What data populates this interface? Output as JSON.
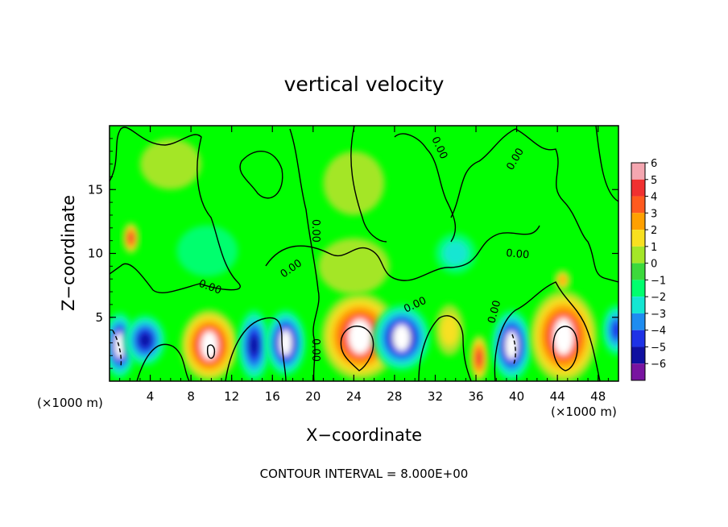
{
  "chart_data": {
    "type": "heatmap",
    "title": "vertical velocity",
    "xlabel": "X−coordinate",
    "ylabel": "Z−coordinate",
    "x_unit_label": "(×1000 m)",
    "z_unit_label": "(×1000 m)",
    "xlim": [
      0,
      50
    ],
    "ylim": [
      0,
      20
    ],
    "x_ticks": [
      {
        "v": 4,
        "label": "4"
      },
      {
        "v": 8,
        "label": "8"
      },
      {
        "v": 12,
        "label": "12"
      },
      {
        "v": 16,
        "label": "16"
      },
      {
        "v": 20,
        "label": "20"
      },
      {
        "v": 24,
        "label": "24"
      },
      {
        "v": 28,
        "label": "28"
      },
      {
        "v": 32,
        "label": "32"
      },
      {
        "v": 36,
        "label": "36"
      },
      {
        "v": 40,
        "label": "40"
      },
      {
        "v": 44,
        "label": "44"
      },
      {
        "v": 48,
        "label": "48"
      }
    ],
    "y_ticks": [
      {
        "v": 5,
        "label": "5"
      },
      {
        "v": 10,
        "label": "10"
      },
      {
        "v": 15,
        "label": "15"
      }
    ],
    "contour_interval_text": "CONTOUR INTERVAL = 8.000E+00",
    "contour_label": "0.00",
    "colorbar": {
      "levels": [
        {
          "label": "6",
          "color": "#f4a6b0"
        },
        {
          "label": "5",
          "color": "#f03030"
        },
        {
          "label": "4",
          "color": "#ff5a1e"
        },
        {
          "label": "3",
          "color": "#ffa000"
        },
        {
          "label": "2",
          "color": "#f8e020"
        },
        {
          "label": "1",
          "color": "#a4e628"
        },
        {
          "label": "0",
          "color": "#3cd93c"
        },
        {
          "label": "−1",
          "color": "#00ff6e"
        },
        {
          "label": "−2",
          "color": "#14e6d2"
        },
        {
          "label": "−3",
          "color": "#1e8cf0"
        },
        {
          "label": "−4",
          "color": "#1e32e6"
        },
        {
          "label": "−5",
          "color": "#1010a0"
        },
        {
          "label": "−6",
          "color": "#7814a0"
        }
      ]
    },
    "background_value": 0,
    "background_color": "#00ff00",
    "cells": [
      {
        "x": 1.0,
        "z": 2.8,
        "rx": 1.6,
        "rz": 2.6,
        "w": -5.5
      },
      {
        "x": 3.5,
        "z": 3.2,
        "rx": 2.0,
        "rz": 2.0,
        "w": -4.5
      },
      {
        "x": 9.8,
        "z": 2.8,
        "rx": 2.8,
        "rz": 2.8,
        "w": 5.6
      },
      {
        "x": 14.2,
        "z": 2.8,
        "rx": 1.6,
        "rz": 2.8,
        "w": -5.2
      },
      {
        "x": 17.3,
        "z": 3.0,
        "rx": 2.0,
        "rz": 2.6,
        "w": -5.6
      },
      {
        "x": 24.6,
        "z": 3.5,
        "rx": 3.8,
        "rz": 3.4,
        "w": 6.0
      },
      {
        "x": 28.7,
        "z": 3.4,
        "rx": 2.8,
        "rz": 2.6,
        "w": -5.5
      },
      {
        "x": 33.4,
        "z": 4.0,
        "rx": 1.4,
        "rz": 2.0,
        "w": 1.8
      },
      {
        "x": 36.3,
        "z": 1.8,
        "rx": 0.9,
        "rz": 1.8,
        "w": 4.6
      },
      {
        "x": 39.5,
        "z": 2.8,
        "rx": 2.0,
        "rz": 2.8,
        "w": -5.6
      },
      {
        "x": 44.6,
        "z": 3.5,
        "rx": 3.3,
        "rz": 3.6,
        "w": 6.0
      },
      {
        "x": 49.8,
        "z": 4.0,
        "rx": 1.4,
        "rz": 2.0,
        "w": -4.2
      },
      {
        "x": 2.1,
        "z": 11.2,
        "rx": 0.8,
        "rz": 1.2,
        "w": 4.6
      },
      {
        "x": 9.6,
        "z": 10.2,
        "rx": 3.0,
        "rz": 2.0,
        "w": -1.0
      },
      {
        "x": 24.0,
        "z": 9.0,
        "rx": 3.5,
        "rz": 2.2,
        "w": 1.0
      },
      {
        "x": 34.0,
        "z": 10.0,
        "rx": 2.0,
        "rz": 1.6,
        "w": -1.6
      },
      {
        "x": 6.0,
        "z": 17.0,
        "rx": 3.0,
        "rz": 2.0,
        "w": 0.7
      },
      {
        "x": 24.0,
        "z": 15.5,
        "rx": 3.0,
        "rz": 2.5,
        "w": 0.8
      },
      {
        "x": 44.5,
        "z": 7.9,
        "rx": 0.8,
        "rz": 0.8,
        "w": 3.0
      }
    ],
    "legend_position": "right"
  }
}
